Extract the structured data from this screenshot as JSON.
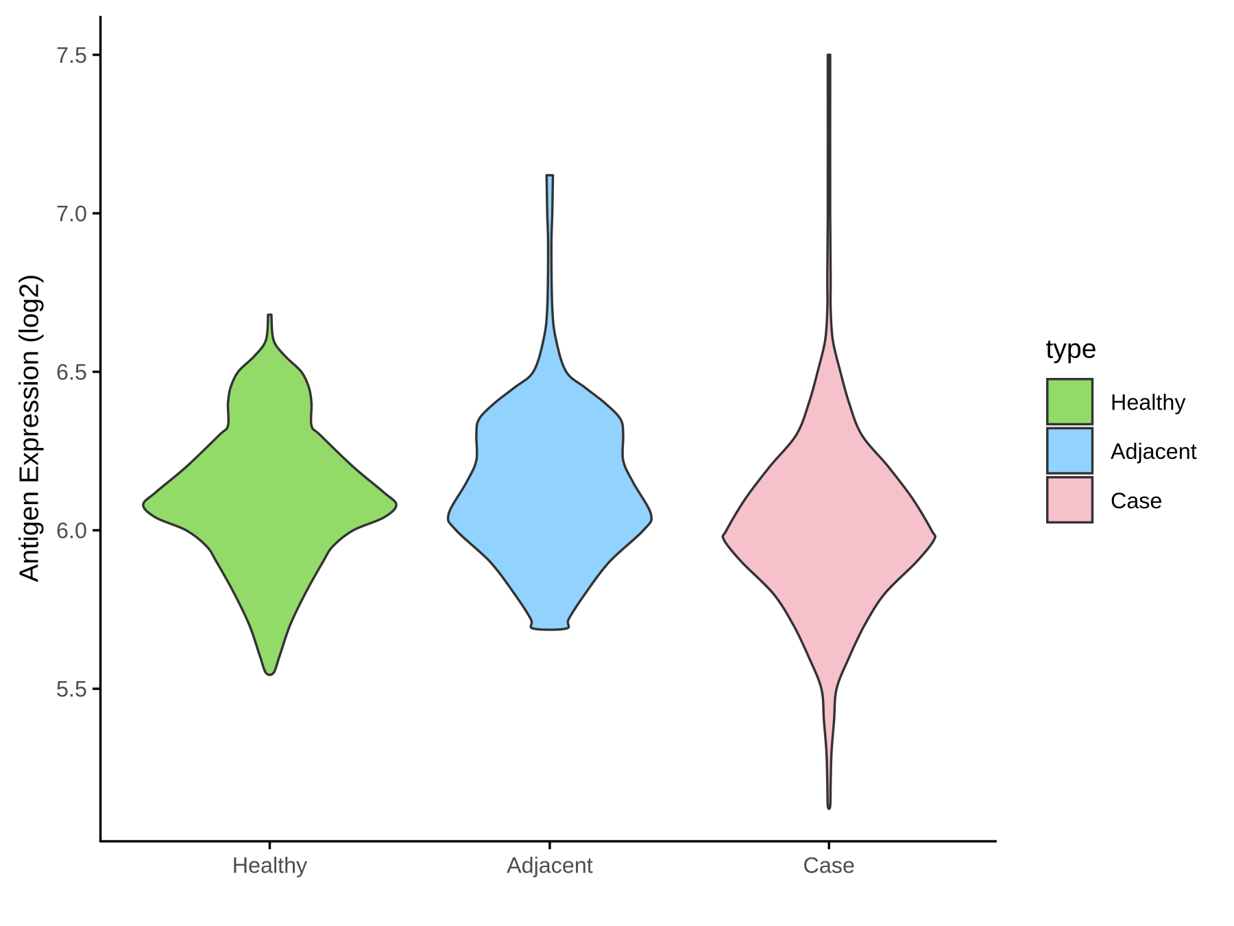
{
  "chart_data": {
    "type": "violin",
    "title": "",
    "xlabel": "",
    "ylabel": "Antigen Expression (log2)",
    "ylim": [
      5.02,
      7.62
    ],
    "yticks": [
      5.5,
      6.0,
      6.5,
      7.0,
      7.5
    ],
    "ytick_labels": [
      "5.5",
      "6.0",
      "6.5",
      "7.0",
      "7.5"
    ],
    "categories": [
      "Healthy",
      "Adjacent",
      "Case"
    ],
    "grid": false,
    "legend": {
      "title": "type",
      "position": "right",
      "entries": [
        "Healthy",
        "Adjacent",
        "Case"
      ]
    },
    "series": [
      {
        "name": "Healthy",
        "color": "#93DB69",
        "range": [
          5.55,
          6.68
        ],
        "density": [
          [
            6.68,
            0.013
          ],
          [
            6.6,
            0.03
          ],
          [
            6.55,
            0.12
          ],
          [
            6.5,
            0.25
          ],
          [
            6.45,
            0.31
          ],
          [
            6.4,
            0.33
          ],
          [
            6.33,
            0.33
          ],
          [
            6.3,
            0.4
          ],
          [
            6.2,
            0.66
          ],
          [
            6.12,
            0.9
          ],
          [
            6.08,
            1.0
          ],
          [
            6.04,
            0.9
          ],
          [
            6.0,
            0.66
          ],
          [
            5.95,
            0.5
          ],
          [
            5.9,
            0.42
          ],
          [
            5.8,
            0.28
          ],
          [
            5.7,
            0.16
          ],
          [
            5.6,
            0.075
          ],
          [
            5.55,
            0.03
          ]
        ]
      },
      {
        "name": "Adjacent",
        "color": "#92D2FF",
        "range": [
          5.69,
          7.12
        ],
        "density": [
          [
            7.12,
            0.025
          ],
          [
            7.0,
            0.02
          ],
          [
            6.9,
            0.013
          ],
          [
            6.7,
            0.02
          ],
          [
            6.6,
            0.05
          ],
          [
            6.5,
            0.13
          ],
          [
            6.45,
            0.28
          ],
          [
            6.4,
            0.44
          ],
          [
            6.35,
            0.56
          ],
          [
            6.3,
            0.58
          ],
          [
            6.22,
            0.58
          ],
          [
            6.15,
            0.66
          ],
          [
            6.05,
            0.8
          ],
          [
            6.0,
            0.74
          ],
          [
            5.9,
            0.47
          ],
          [
            5.8,
            0.28
          ],
          [
            5.72,
            0.15
          ],
          [
            5.69,
            0.13
          ]
        ]
      },
      {
        "name": "Case",
        "color": "#F7C1CB",
        "range": [
          5.13,
          7.5
        ],
        "density": [
          [
            7.5,
            0.006
          ],
          [
            7.0,
            0.006
          ],
          [
            6.8,
            0.013
          ],
          [
            6.7,
            0.013
          ],
          [
            6.6,
            0.03
          ],
          [
            6.5,
            0.09
          ],
          [
            6.4,
            0.16
          ],
          [
            6.3,
            0.26
          ],
          [
            6.2,
            0.47
          ],
          [
            6.1,
            0.66
          ],
          [
            6.0,
            0.81
          ],
          [
            5.97,
            0.83
          ],
          [
            5.9,
            0.69
          ],
          [
            5.8,
            0.44
          ],
          [
            5.7,
            0.28
          ],
          [
            5.6,
            0.16
          ],
          [
            5.5,
            0.06
          ],
          [
            5.4,
            0.04
          ],
          [
            5.3,
            0.02
          ],
          [
            5.2,
            0.013
          ],
          [
            5.13,
            0.006
          ]
        ]
      }
    ]
  }
}
